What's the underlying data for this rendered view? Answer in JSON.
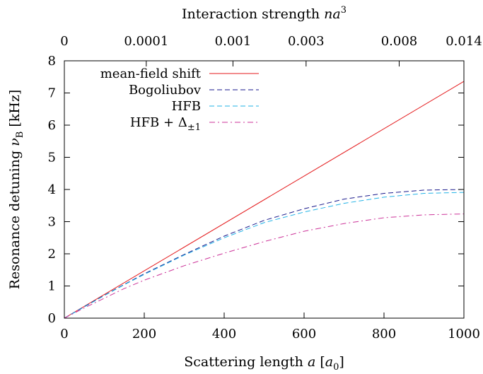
{
  "chart_data": {
    "type": "line",
    "xlabel": "Scattering length a [a₀]",
    "ylabel": "Resonance detuning ν_B [kHz]",
    "x2label": "Interaction strength na³",
    "xlim": [
      0,
      1000
    ],
    "ylim": [
      0,
      8
    ],
    "x_ticks": [
      "0",
      "200",
      "400",
      "600",
      "800",
      "1000"
    ],
    "y_ticks": [
      "0",
      "1",
      "2",
      "3",
      "4",
      "5",
      "6",
      "7",
      "8"
    ],
    "top_ticks": [
      {
        "a": 0,
        "label": "0"
      },
      {
        "a": 205,
        "label": "0.0001"
      },
      {
        "a": 422,
        "label": "0.001"
      },
      {
        "a": 605,
        "label": "0.003"
      },
      {
        "a": 838,
        "label": "0.008"
      },
      {
        "a": 1000,
        "label": "0.014"
      }
    ],
    "legend_position": "top-left",
    "grid": false,
    "series": [
      {
        "name": "mean-field shift",
        "color": "#e41a1c",
        "dash": "solid",
        "x": [
          0,
          1000
        ],
        "y": [
          0,
          7.36
        ]
      },
      {
        "name": "Bogoliubov",
        "color": "#1a1a8c",
        "dash": "dash",
        "x": [
          0,
          50,
          100,
          150,
          200,
          300,
          400,
          500,
          600,
          700,
          800,
          900,
          1000
        ],
        "y": [
          0,
          0.36,
          0.71,
          1.05,
          1.38,
          1.98,
          2.55,
          3.04,
          3.4,
          3.7,
          3.88,
          3.98,
          4.0
        ]
      },
      {
        "name": "HFB",
        "color": "#22b3e6",
        "dash": "dash",
        "x": [
          0,
          50,
          100,
          150,
          200,
          300,
          400,
          500,
          600,
          700,
          800,
          900,
          1000
        ],
        "y": [
          0,
          0.35,
          0.7,
          1.04,
          1.36,
          1.96,
          2.5,
          2.97,
          3.3,
          3.57,
          3.76,
          3.88,
          3.91
        ]
      },
      {
        "name": "HFB + Δ±1",
        "color": "#cc3399",
        "dash": "dashdot",
        "x": [
          0,
          50,
          100,
          150,
          200,
          300,
          400,
          500,
          600,
          700,
          800,
          900,
          1000
        ],
        "y": [
          0,
          0.32,
          0.62,
          0.92,
          1.18,
          1.63,
          2.02,
          2.38,
          2.7,
          2.94,
          3.12,
          3.21,
          3.24
        ]
      }
    ]
  }
}
